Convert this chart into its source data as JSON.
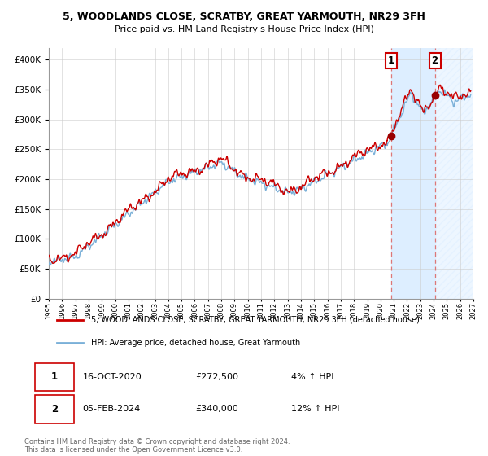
{
  "title": "5, WOODLANDS CLOSE, SCRATBY, GREAT YARMOUTH, NR29 3FH",
  "subtitle": "Price paid vs. HM Land Registry's House Price Index (HPI)",
  "legend_line1": "5, WOODLANDS CLOSE, SCRATBY, GREAT YARMOUTH, NR29 3FH (detached house)",
  "legend_line2": "HPI: Average price, detached house, Great Yarmouth",
  "annotation1_date": "16-OCT-2020",
  "annotation1_price": "£272,500",
  "annotation1_hpi": "4% ↑ HPI",
  "annotation1_year": 2020.79,
  "annotation1_value": 272500,
  "annotation2_date": "05-FEB-2024",
  "annotation2_price": "£340,000",
  "annotation2_hpi": "12% ↑ HPI",
  "annotation2_year": 2024.09,
  "annotation2_value": 340000,
  "hpi_color": "#7ab0d8",
  "price_color": "#cc0000",
  "marker_color": "#990000",
  "vline_color": "#dd7777",
  "shade_color": "#ddeeff",
  "background_color": "#ffffff",
  "grid_color": "#cccccc",
  "footer_text": "Contains HM Land Registry data © Crown copyright and database right 2024.\nThis data is licensed under the Open Government Licence v3.0.",
  "ylim_min": 0,
  "ylim_max": 420000,
  "xmin": 1995,
  "xmax": 2027
}
